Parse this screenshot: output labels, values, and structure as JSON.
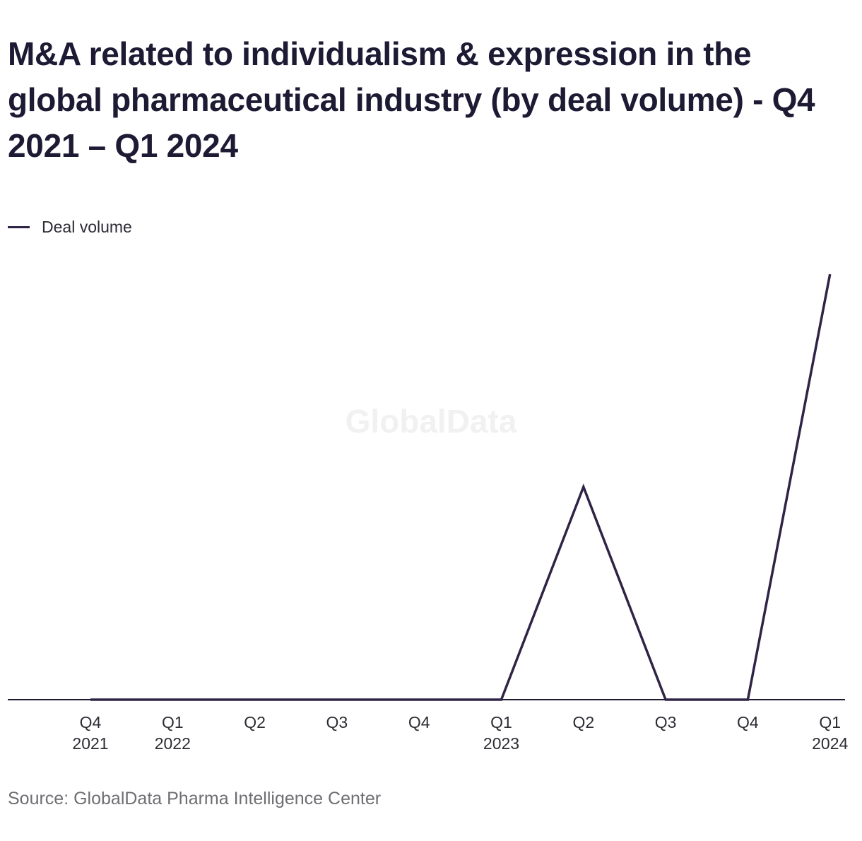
{
  "title": "M&A related to individualism & expression in the global pharmaceutical industry (by deal volume) - Q4 2021 – Q1 2024",
  "legend": {
    "label": "Deal volume",
    "color": "#2f2346"
  },
  "watermark": "GlobalData",
  "source": "Source: GlobalData Pharma Intelligence Center",
  "chart_data": {
    "type": "line",
    "title": "M&A related to individualism & expression in the global pharmaceutical industry (by deal volume) - Q4 2021 – Q1 2024",
    "categories": [
      [
        "Q4",
        "2021"
      ],
      [
        "Q1",
        "2022"
      ],
      [
        "Q2",
        ""
      ],
      [
        "Q3",
        ""
      ],
      [
        "Q4",
        ""
      ],
      [
        "Q1",
        "2023"
      ],
      [
        "Q2",
        ""
      ],
      [
        "Q3",
        ""
      ],
      [
        "Q4",
        ""
      ],
      [
        "Q1",
        "2024"
      ]
    ],
    "series": [
      {
        "name": "Deal volume",
        "color": "#2f2346",
        "values": [
          0,
          0,
          0,
          0,
          0,
          0,
          1,
          0,
          0,
          2
        ]
      }
    ],
    "ylim": [
      0,
      2
    ],
    "grid": false,
    "y_axis_labels": false,
    "legend_position": "top-left",
    "xlabel": "",
    "ylabel": ""
  }
}
